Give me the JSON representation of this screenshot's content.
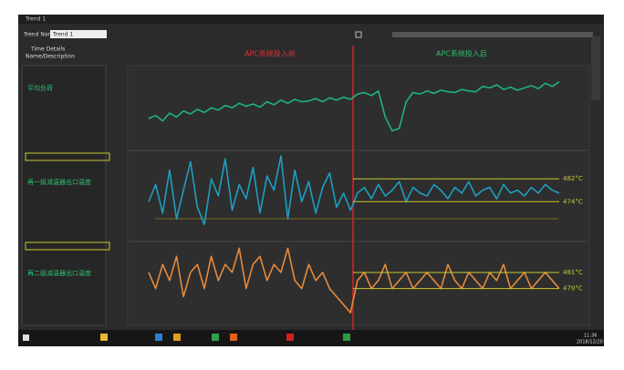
{
  "window": {
    "title": "Trend 1"
  },
  "toolbar": {
    "trend_name_label": "Trend Name",
    "trend_name": "Trend 1"
  },
  "details": {
    "time_details": "Time Details",
    "name_description": "Name/Description"
  },
  "annotations": {
    "before": "APC系统投入前",
    "after": "APC系统投入后"
  },
  "pens": [
    {
      "name": "平均负荷",
      "color": "#1db57a",
      "ylim": [
        0,
        100
      ],
      "values": [
        38,
        42,
        35,
        45,
        40,
        48,
        44,
        50,
        46,
        52,
        49,
        55,
        52,
        58,
        54,
        57,
        53,
        60,
        56,
        62,
        58,
        63,
        60,
        61,
        64,
        60,
        65,
        62,
        66,
        63,
        70,
        72,
        68,
        74,
        40,
        22,
        25,
        60,
        72,
        70,
        74,
        71,
        75,
        73,
        72,
        76,
        74,
        73,
        80,
        78,
        82,
        76,
        79,
        75,
        78,
        81,
        77,
        84,
        80,
        86
      ]
    },
    {
      "name": "再一级减温器出口温度",
      "color": "#1e9ec0",
      "ylim": [
        461,
        491
      ],
      "reference_lines": [
        {
          "value": 482,
          "label": "482°C"
        },
        {
          "value": 474,
          "label": "474°C"
        }
      ],
      "values": [
        474,
        480,
        470,
        485,
        468,
        478,
        488,
        472,
        466,
        482,
        476,
        489,
        471,
        480,
        475,
        486,
        470,
        483,
        478,
        490,
        468,
        485,
        474,
        481,
        470,
        479,
        484,
        472,
        477,
        471,
        477,
        479,
        475,
        480,
        476,
        478,
        481,
        474,
        479,
        477,
        476,
        480,
        478,
        475,
        479,
        477,
        481,
        476,
        478,
        479,
        475,
        480,
        477,
        478,
        476,
        479,
        477,
        480,
        478,
        477
      ]
    },
    {
      "name": "再二级减温器出口温度",
      "color": "#e48a3c",
      "ylim": [
        475,
        484.5
      ],
      "reference_lines": [
        {
          "value": 481,
          "label": "481°C"
        },
        {
          "value": 479,
          "label": "479°C"
        }
      ],
      "values": [
        481,
        479,
        482,
        480,
        483,
        478,
        481,
        482,
        479,
        483,
        480,
        482,
        481,
        484,
        479,
        482,
        483,
        480,
        482,
        481,
        484,
        480,
        479,
        482,
        480,
        481,
        479,
        478,
        477,
        476,
        480,
        481,
        479,
        480,
        482,
        479,
        480,
        481,
        479,
        480,
        481,
        480,
        479,
        482,
        480,
        479,
        481,
        480,
        479,
        481,
        480,
        482,
        479,
        480,
        481,
        479,
        480,
        481,
        480,
        479
      ]
    }
  ],
  "taskbar": {
    "time": "11:36",
    "date": "2018/12/20"
  }
}
